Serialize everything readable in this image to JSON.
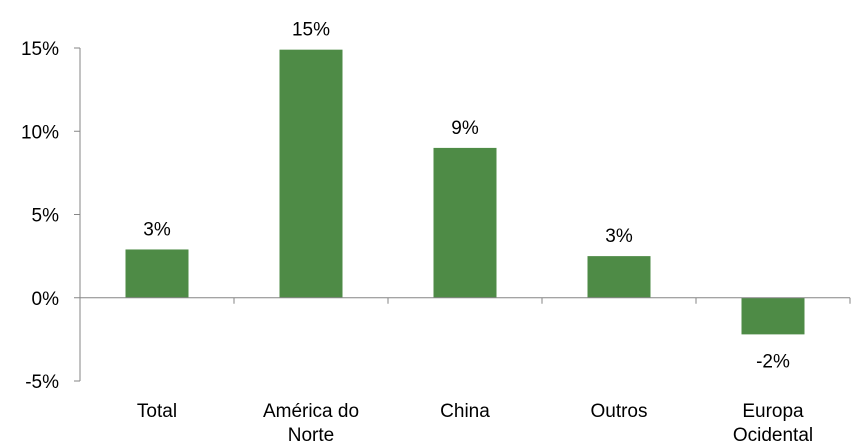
{
  "chart_data": {
    "type": "bar",
    "categories": [
      "Total",
      "América do Norte",
      "China",
      "Outros",
      "Europa Ocidental"
    ],
    "category_lines": [
      [
        "Total"
      ],
      [
        "América do",
        "Norte"
      ],
      [
        "China"
      ],
      [
        "Outros"
      ],
      [
        "Europa",
        "Ocidental"
      ]
    ],
    "values": [
      2.9,
      14.9,
      9.0,
      2.5,
      -2.2
    ],
    "data_labels": [
      "3%",
      "15%",
      "9%",
      "3%",
      "-2%"
    ],
    "ylim": [
      -5,
      15
    ],
    "yticks": [
      -5,
      0,
      5,
      10,
      15
    ],
    "ytick_labels": [
      "-5%",
      "0%",
      "5%",
      "10%",
      "15%"
    ],
    "bar_color": "#4e8b46",
    "axis_color": "#868686",
    "title": "",
    "xlabel": "",
    "ylabel": "",
    "grid": false
  }
}
